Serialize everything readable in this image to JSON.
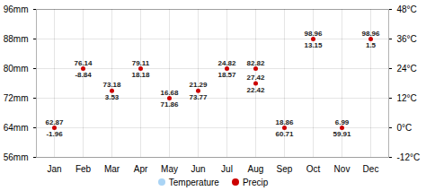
{
  "chart_data": {
    "type": "scatter",
    "categories": [
      "Jan",
      "Feb",
      "Mar",
      "Apr",
      "May",
      "Jun",
      "Jul",
      "Aug",
      "Sep",
      "Oct",
      "Nov",
      "Dec"
    ],
    "series": [
      {
        "name": "Temperature",
        "color": "#aad4f5",
        "marker": "circle",
        "values": [
          null,
          null,
          null,
          null,
          null,
          null,
          null,
          null,
          null,
          null,
          null,
          null
        ]
      },
      {
        "name": "Precip",
        "color": "#cc0000",
        "marker": "circle",
        "values": [
          64,
          80,
          74,
          80,
          72,
          74,
          80,
          80,
          64,
          88,
          64,
          88
        ]
      },
      {
        "name": "Precip",
        "color": "#cc0000",
        "marker": "circle",
        "values": [
          null,
          null,
          null,
          null,
          null,
          null,
          null,
          76,
          null,
          null,
          null,
          null
        ]
      }
    ],
    "ylim": [
      56,
      96
    ],
    "yticks": [
      {
        "value": 56,
        "label": "56mm"
      },
      {
        "value": 64,
        "label": "64mm"
      },
      {
        "value": 72,
        "label": "72mm"
      },
      {
        "value": 80,
        "label": "80mm"
      },
      {
        "value": 88,
        "label": "88mm"
      },
      {
        "value": 96,
        "label": "96mm"
      }
    ],
    "y2lim": [
      -12,
      48
    ],
    "y2ticks": [
      {
        "value": -12,
        "label": "-12°C"
      },
      {
        "value": 0,
        "label": "0°C"
      },
      {
        "value": 12,
        "label": "12°C"
      },
      {
        "value": 24,
        "label": "24°C"
      },
      {
        "value": 36,
        "label": "36°C"
      },
      {
        "value": 48,
        "label": "48°C"
      }
    ],
    "grid": true,
    "legend": "bottom",
    "annotations": [
      {
        "category": "Jan",
        "y": 64,
        "text": "62.87",
        "position": "above"
      },
      {
        "category": "Feb",
        "y": 80,
        "text": "76.14",
        "position": "above"
      },
      {
        "category": "Mar",
        "y": 74,
        "text": "73.18",
        "position": "above"
      },
      {
        "category": "Apr",
        "y": 80,
        "text": "79.11",
        "position": "above"
      },
      {
        "category": "May",
        "y": 72,
        "text": "16.68",
        "position": "above"
      },
      {
        "category": "Jun",
        "y": 74,
        "text": "21.29",
        "position": "above"
      },
      {
        "category": "Jul",
        "y": 80,
        "text": "24.82",
        "position": "above"
      },
      {
        "category": "Aug",
        "y": 80,
        "text": "82.82",
        "position": "above"
      },
      {
        "category": "Aug",
        "y": 76,
        "text": "27.42",
        "position": "above"
      },
      {
        "category": "Sep",
        "y": 64,
        "text": "18.86",
        "position": "above"
      },
      {
        "category": "Oct",
        "y": 88,
        "text": "98.96",
        "position": "above"
      },
      {
        "category": "Nov",
        "y": 64,
        "text": "6.99",
        "position": "above"
      },
      {
        "category": "Dec",
        "y": 88,
        "text": "98.96",
        "position": "above"
      },
      {
        "category": "Jan",
        "y": 64,
        "text": "-1.96",
        "position": "below"
      },
      {
        "category": "Feb",
        "y": 80,
        "text": "-8.84",
        "position": "below"
      },
      {
        "category": "Mar",
        "y": 74,
        "text": "3.53",
        "position": "below"
      },
      {
        "category": "Apr",
        "y": 80,
        "text": "18.18",
        "position": "below"
      },
      {
        "category": "May",
        "y": 72,
        "text": "71.86",
        "position": "below"
      },
      {
        "category": "Jun",
        "y": 74,
        "text": "73.77",
        "position": "below"
      },
      {
        "category": "Jul",
        "y": 80,
        "text": "18.57",
        "position": "below"
      },
      {
        "category": "Aug",
        "y": 76,
        "text": "22.42",
        "position": "below"
      },
      {
        "category": "Sep",
        "y": 64,
        "text": "60.71",
        "position": "below"
      },
      {
        "category": "Oct",
        "y": 88,
        "text": "13.15",
        "position": "below"
      },
      {
        "category": "Nov",
        "y": 64,
        "text": "59.91",
        "position": "below"
      },
      {
        "category": "Dec",
        "y": 88,
        "text": "1.5",
        "position": "below"
      }
    ]
  }
}
